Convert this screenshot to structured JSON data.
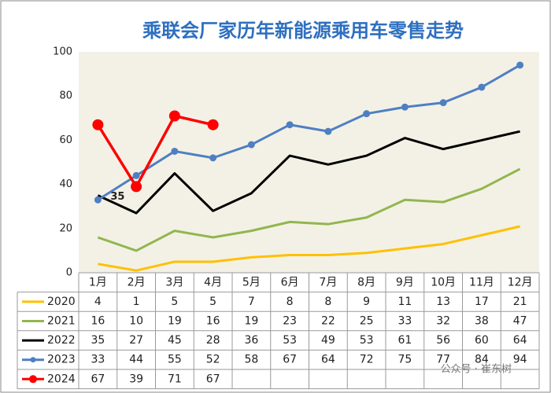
{
  "chart_data": {
    "type": "line",
    "title": "乘联会厂家历年新能源乘用车零售走势",
    "categories": [
      "1月",
      "2月",
      "3月",
      "4月",
      "5月",
      "6月",
      "7月",
      "8月",
      "9月",
      "10月",
      "11月",
      "12月"
    ],
    "ylim": [
      0,
      100
    ],
    "yticks": [
      0,
      20,
      40,
      60,
      80,
      100
    ],
    "series": [
      {
        "name": "2020",
        "color": "#ffc000",
        "values": [
          4,
          1,
          5,
          5,
          7,
          8,
          8,
          9,
          11,
          13,
          17,
          21
        ]
      },
      {
        "name": "2021",
        "color": "#92b64e",
        "values": [
          16,
          10,
          19,
          16,
          19,
          23,
          22,
          25,
          33,
          32,
          38,
          47
        ]
      },
      {
        "name": "2022",
        "color": "#000000",
        "values": [
          35,
          27,
          45,
          28,
          36,
          53,
          49,
          53,
          61,
          56,
          60,
          64
        ]
      },
      {
        "name": "2023",
        "color": "#4f7fc3",
        "marker": "circle",
        "values": [
          33,
          44,
          55,
          52,
          58,
          67,
          64,
          72,
          75,
          77,
          84,
          94
        ]
      },
      {
        "name": "2024",
        "color": "#ff0000",
        "marker": "circle",
        "values": [
          67,
          39,
          71,
          67,
          null,
          null,
          null,
          null,
          null,
          null,
          null,
          null
        ]
      }
    ],
    "watermark": "公众号 · 崔东树"
  }
}
